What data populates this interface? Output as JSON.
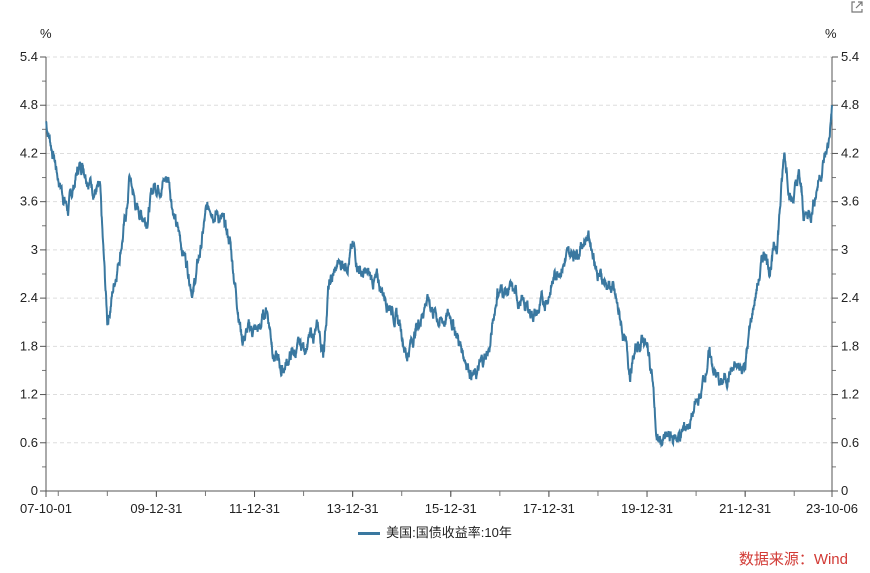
{
  "chart_data": {
    "type": "line",
    "title": "",
    "ylabel_left": "%",
    "ylabel_right": "%",
    "ylim": [
      0,
      5.4
    ],
    "yticks": [
      "0",
      "0.6",
      "1.2",
      "1.8",
      "2.4",
      "3",
      "3.6",
      "4.2",
      "4.8",
      "5.4"
    ],
    "xlim": [
      2007.75,
      2023.77
    ],
    "xticks": [
      {
        "label": "07-10-01",
        "x": 2007.75
      },
      {
        "label": "09-12-31",
        "x": 2010.0
      },
      {
        "label": "11-12-31",
        "x": 2012.0
      },
      {
        "label": "13-12-31",
        "x": 2014.0
      },
      {
        "label": "15-12-31",
        "x": 2016.0
      },
      {
        "label": "17-12-31",
        "x": 2018.0
      },
      {
        "label": "19-12-31",
        "x": 2020.0
      },
      {
        "label": "21-12-31",
        "x": 2022.0
      },
      {
        "label": "23-10-06",
        "x": 2023.77
      }
    ],
    "grid": true,
    "legend_position": "bottom",
    "series": [
      {
        "name": "美国:国债收益率:10年",
        "color": "#3a78a0",
        "x": [
          2007.75,
          2007.9,
          2008.0,
          2008.2,
          2008.4,
          2008.5,
          2008.7,
          2008.85,
          2008.95,
          2009.0,
          2009.2,
          2009.4,
          2009.45,
          2009.6,
          2009.8,
          2009.95,
          2010.25,
          2010.4,
          2010.6,
          2010.75,
          2010.9,
          2011.0,
          2011.1,
          2011.3,
          2011.5,
          2011.6,
          2011.75,
          2011.9,
          2012.1,
          2012.25,
          2012.4,
          2012.55,
          2012.75,
          2013.0,
          2013.3,
          2013.4,
          2013.5,
          2013.7,
          2013.9,
          2014.0,
          2014.2,
          2014.5,
          2014.8,
          2015.0,
          2015.1,
          2015.4,
          2015.5,
          2015.8,
          2016.0,
          2016.2,
          2016.5,
          2016.8,
          2016.95,
          2017.2,
          2017.5,
          2017.75,
          2017.95,
          2018.2,
          2018.4,
          2018.8,
          2018.9,
          2019.0,
          2019.3,
          2019.5,
          2019.65,
          2019.8,
          2019.95,
          2020.1,
          2020.2,
          2020.5,
          2020.7,
          2020.9,
          2021.1,
          2021.25,
          2021.5,
          2021.7,
          2021.9,
          2022.0,
          2022.2,
          2022.4,
          2022.5,
          2022.65,
          2022.8,
          2022.95,
          2023.1,
          2023.2,
          2023.35,
          2023.5,
          2023.6,
          2023.7,
          2023.77
        ],
        "values": [
          4.6,
          4.2,
          3.9,
          3.5,
          4.0,
          4.1,
          3.8,
          3.7,
          2.6,
          2.1,
          2.8,
          3.5,
          3.9,
          3.5,
          3.4,
          3.8,
          3.9,
          3.3,
          2.9,
          2.5,
          3.0,
          3.4,
          3.6,
          3.4,
          3.1,
          2.6,
          1.9,
          2.0,
          2.0,
          2.3,
          1.7,
          1.5,
          1.7,
          1.8,
          2.0,
          1.7,
          2.5,
          2.8,
          2.9,
          3.0,
          2.7,
          2.6,
          2.3,
          2.0,
          1.7,
          2.2,
          2.4,
          2.1,
          2.2,
          1.8,
          1.4,
          1.8,
          2.5,
          2.5,
          2.3,
          2.2,
          2.4,
          2.8,
          2.9,
          3.2,
          3.0,
          2.7,
          2.5,
          2.0,
          1.5,
          1.8,
          1.9,
          1.5,
          0.6,
          0.65,
          0.7,
          0.9,
          1.2,
          1.7,
          1.3,
          1.5,
          1.5,
          1.6,
          2.4,
          3.0,
          2.8,
          3.1,
          4.2,
          3.6,
          3.9,
          3.4,
          3.5,
          3.9,
          4.1,
          4.3,
          4.8
        ]
      }
    ]
  },
  "legend_label": "美国:国债收益率:10年",
  "source": "数据来源：Wind"
}
